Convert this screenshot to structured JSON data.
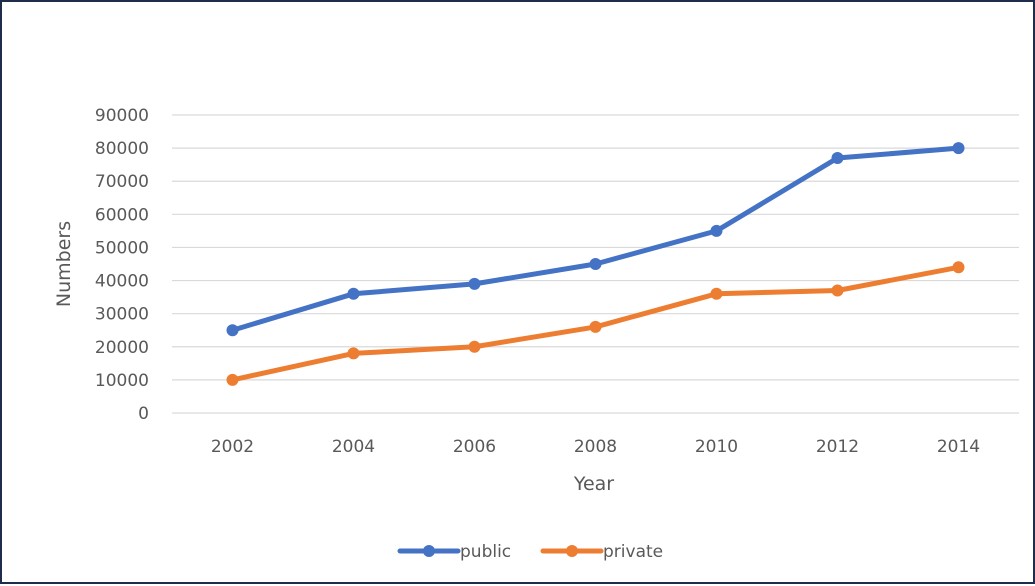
{
  "chart_data": {
    "type": "line",
    "title": "",
    "xlabel": "Year",
    "ylabel": "Numbers",
    "categories": [
      "2002",
      "2004",
      "2006",
      "2008",
      "2010",
      "2012",
      "2014"
    ],
    "ylim": [
      0,
      90000
    ],
    "yticks": [
      "0",
      "10000",
      "20000",
      "30000",
      "40000",
      "50000",
      "60000",
      "70000",
      "80000",
      "90000"
    ],
    "grid": true,
    "legend_position": "bottom",
    "series": [
      {
        "name": "public",
        "color": "#4472C4",
        "values": [
          25000,
          36000,
          39000,
          45000,
          55000,
          77000,
          80000
        ]
      },
      {
        "name": "private",
        "color": "#ED7D31",
        "values": [
          10000,
          18000,
          20000,
          26000,
          36000,
          37000,
          44000
        ]
      }
    ]
  }
}
